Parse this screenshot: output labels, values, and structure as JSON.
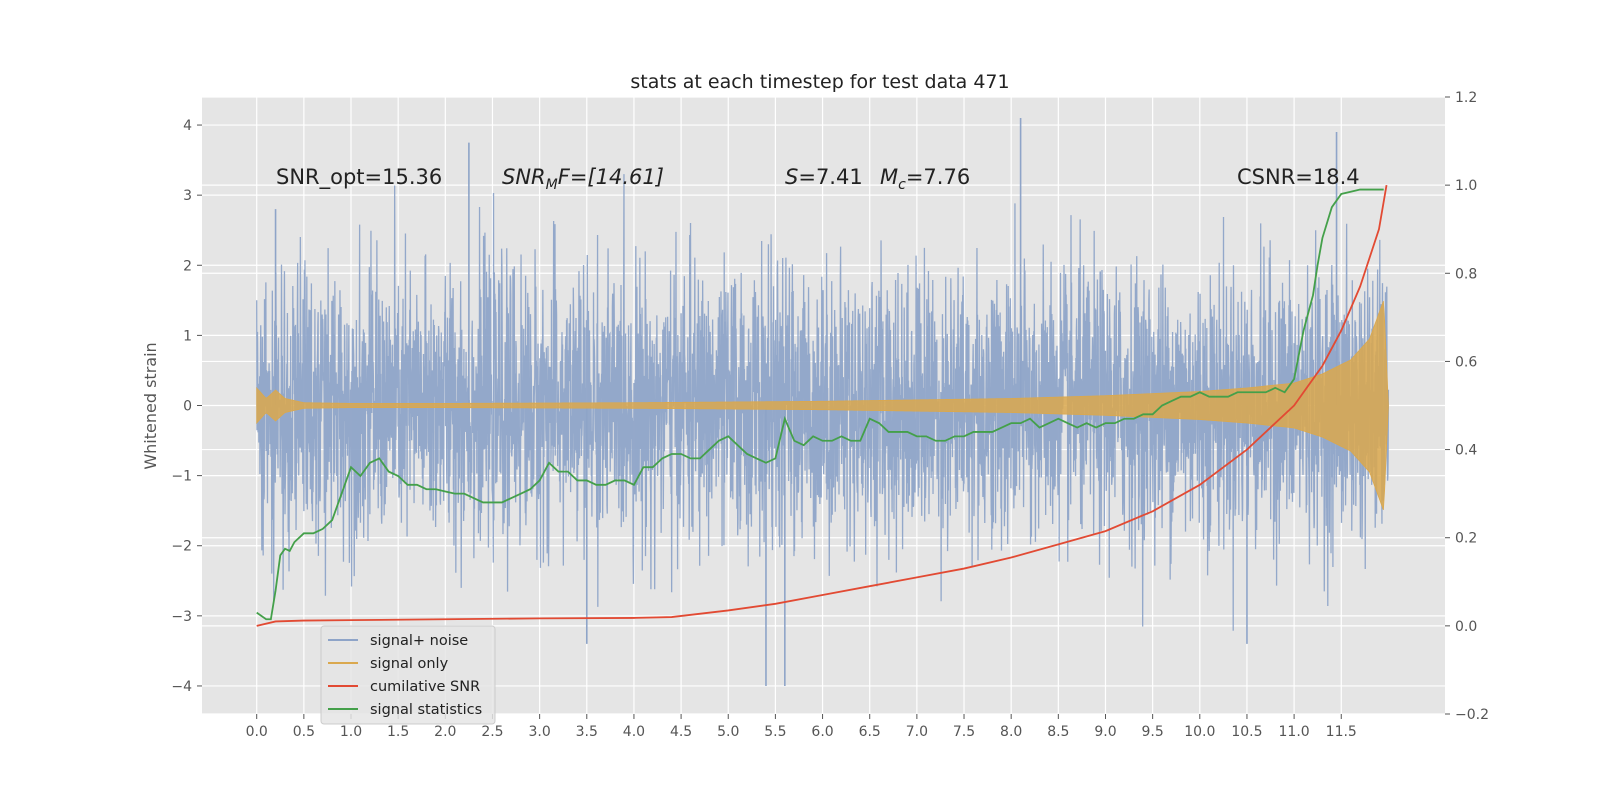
{
  "chart_data": {
    "type": "line",
    "title": "stats at each timestep for test data 471",
    "xlabel": "",
    "ylabel": "Whitened strain",
    "ylabel_right": "",
    "xlim": [
      -0.58,
      12.6
    ],
    "ylim": [
      -4.4,
      4.4
    ],
    "ylim_right": [
      -0.2,
      1.2
    ],
    "xticks": [
      "0.0",
      "0.5",
      "1.0",
      "1.5",
      "2.0",
      "2.5",
      "3.0",
      "3.5",
      "4.0",
      "4.5",
      "5.0",
      "5.5",
      "6.0",
      "6.5",
      "7.0",
      "7.5",
      "8.0",
      "8.5",
      "9.0",
      "9.5",
      "10.0",
      "10.5",
      "11.0",
      "11.5"
    ],
    "yticks": [
      -4,
      -3,
      -2,
      -1,
      0,
      1,
      2,
      3,
      4
    ],
    "yticks_right": [
      -0.2,
      0.0,
      0.2,
      0.4,
      0.6,
      0.8,
      1.0,
      1.2
    ],
    "grid": true,
    "legend_position": "lower-left",
    "colors": {
      "background": "#e5e5e5",
      "grid": "#ffffff",
      "signal_noise": "#8ea4c8",
      "signal_only": "#daa84e",
      "cumulative_snr": "#e24a33",
      "signal_statistics": "#44a04a"
    },
    "annotations": {
      "snr_opt": "SNR_opt=15.36",
      "snr_mf_main": "SNR",
      "snr_mf_sub": "M",
      "snr_mf_rest": "F=[14.61]",
      "s_main": "S",
      "s_rest": "=7.41",
      "mc_main": "M",
      "mc_sub": "c",
      "mc_rest": "=7.76",
      "csnr": "CSNR=18.4"
    },
    "series": [
      {
        "name": "signal+ noise",
        "axis": "left",
        "style": "dense-noise",
        "noise_sigma": 1.0,
        "x_range": [
          0.0,
          12.0
        ],
        "notable_peaks": [
          [
            0.2,
            2.8
          ],
          [
            2.25,
            3.75
          ],
          [
            5.4,
            -4.0
          ],
          [
            5.6,
            -4.0
          ],
          [
            8.1,
            4.1
          ],
          [
            11.45,
            3.9
          ],
          [
            3.5,
            -3.4
          ],
          [
            10.5,
            -3.4
          ]
        ]
      },
      {
        "name": "signal only",
        "axis": "left",
        "style": "chirp-envelope",
        "x": [
          0.0,
          0.1,
          0.2,
          0.3,
          0.5,
          1.0,
          2.0,
          4.0,
          6.0,
          8.0,
          9.0,
          10.0,
          10.5,
          11.0,
          11.3,
          11.6,
          11.8,
          11.95,
          12.0
        ],
        "amplitude": [
          0.25,
          0.1,
          0.22,
          0.1,
          0.04,
          0.03,
          0.03,
          0.04,
          0.06,
          0.1,
          0.14,
          0.2,
          0.25,
          0.32,
          0.45,
          0.65,
          0.95,
          1.5,
          0.0
        ]
      },
      {
        "name": "cumilative SNR",
        "axis": "right",
        "x": [
          0.0,
          0.2,
          0.5,
          1.0,
          2.0,
          3.0,
          4.0,
          4.4,
          5.0,
          5.5,
          6.0,
          6.5,
          7.0,
          7.5,
          8.0,
          8.5,
          9.0,
          9.5,
          10.0,
          10.5,
          11.0,
          11.3,
          11.5,
          11.7,
          11.9,
          11.98
        ],
        "values": [
          0.0,
          0.01,
          0.012,
          0.013,
          0.015,
          0.017,
          0.018,
          0.02,
          0.035,
          0.05,
          0.07,
          0.09,
          0.11,
          0.13,
          0.155,
          0.185,
          0.215,
          0.26,
          0.32,
          0.4,
          0.5,
          0.59,
          0.67,
          0.77,
          0.9,
          1.0
        ]
      },
      {
        "name": "signal statistics",
        "axis": "right",
        "x": [
          0.0,
          0.1,
          0.15,
          0.2,
          0.25,
          0.3,
          0.35,
          0.4,
          0.5,
          0.6,
          0.7,
          0.8,
          0.9,
          1.0,
          1.1,
          1.2,
          1.3,
          1.4,
          1.5,
          1.6,
          1.7,
          1.8,
          1.9,
          2.0,
          2.1,
          2.2,
          2.3,
          2.4,
          2.5,
          2.6,
          2.7,
          2.8,
          2.9,
          3.0,
          3.1,
          3.2,
          3.3,
          3.4,
          3.5,
          3.6,
          3.7,
          3.8,
          3.9,
          4.0,
          4.1,
          4.2,
          4.3,
          4.4,
          4.5,
          4.6,
          4.7,
          4.8,
          4.9,
          5.0,
          5.1,
          5.2,
          5.3,
          5.4,
          5.5,
          5.6,
          5.7,
          5.8,
          5.9,
          6.0,
          6.1,
          6.2,
          6.3,
          6.4,
          6.5,
          6.6,
          6.7,
          6.8,
          6.9,
          7.0,
          7.1,
          7.2,
          7.3,
          7.4,
          7.5,
          7.6,
          7.7,
          7.8,
          7.9,
          8.0,
          8.1,
          8.2,
          8.3,
          8.4,
          8.5,
          8.6,
          8.7,
          8.8,
          8.9,
          9.0,
          9.1,
          9.2,
          9.3,
          9.4,
          9.5,
          9.6,
          9.7,
          9.8,
          9.9,
          10.0,
          10.1,
          10.2,
          10.3,
          10.4,
          10.5,
          10.6,
          10.7,
          10.8,
          10.9,
          11.0,
          11.1,
          11.2,
          11.25,
          11.3,
          11.4,
          11.5,
          11.6,
          11.7,
          11.8,
          11.9,
          11.95
        ],
        "values": [
          0.03,
          0.015,
          0.015,
          0.08,
          0.16,
          0.175,
          0.17,
          0.19,
          0.21,
          0.21,
          0.22,
          0.24,
          0.3,
          0.36,
          0.34,
          0.37,
          0.38,
          0.35,
          0.34,
          0.32,
          0.32,
          0.31,
          0.31,
          0.305,
          0.3,
          0.3,
          0.29,
          0.28,
          0.28,
          0.28,
          0.29,
          0.3,
          0.31,
          0.33,
          0.37,
          0.35,
          0.35,
          0.33,
          0.33,
          0.32,
          0.32,
          0.33,
          0.33,
          0.32,
          0.36,
          0.36,
          0.38,
          0.39,
          0.39,
          0.38,
          0.38,
          0.4,
          0.42,
          0.43,
          0.41,
          0.39,
          0.38,
          0.37,
          0.38,
          0.47,
          0.42,
          0.41,
          0.43,
          0.42,
          0.42,
          0.43,
          0.42,
          0.42,
          0.47,
          0.46,
          0.44,
          0.44,
          0.44,
          0.43,
          0.43,
          0.42,
          0.42,
          0.43,
          0.43,
          0.44,
          0.44,
          0.44,
          0.45,
          0.46,
          0.46,
          0.47,
          0.45,
          0.46,
          0.47,
          0.46,
          0.45,
          0.46,
          0.45,
          0.46,
          0.46,
          0.47,
          0.47,
          0.48,
          0.48,
          0.5,
          0.51,
          0.52,
          0.52,
          0.53,
          0.52,
          0.52,
          0.52,
          0.53,
          0.53,
          0.53,
          0.53,
          0.54,
          0.53,
          0.56,
          0.67,
          0.75,
          0.82,
          0.88,
          0.95,
          0.98,
          0.985,
          0.99,
          0.99,
          0.99,
          0.99
        ]
      }
    ]
  }
}
